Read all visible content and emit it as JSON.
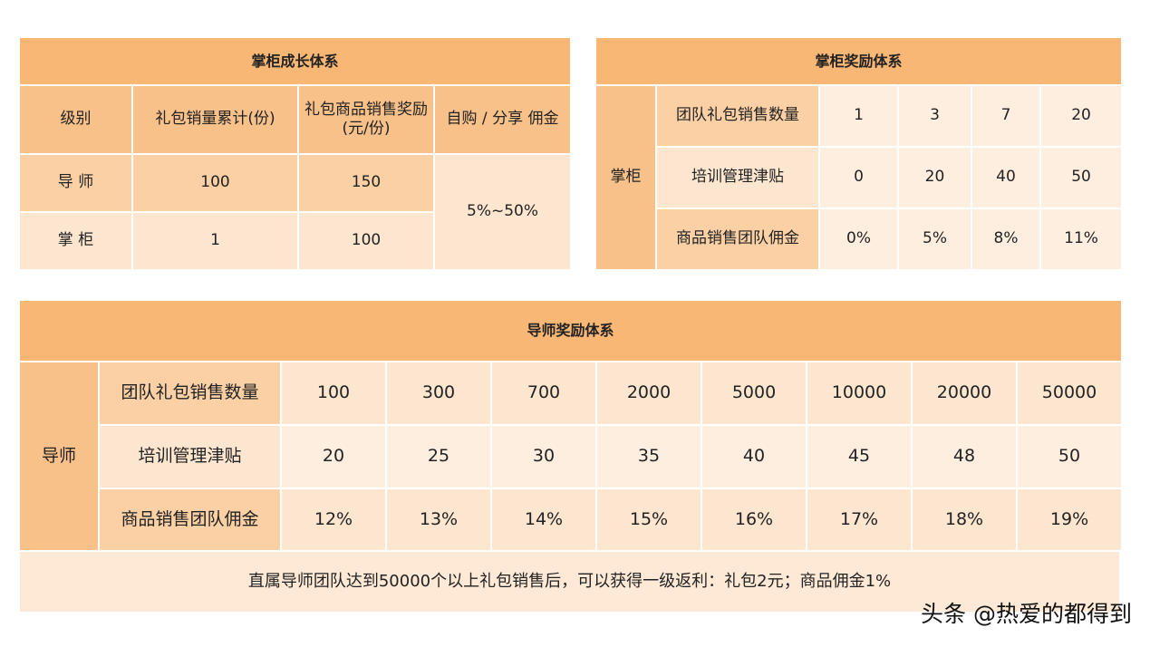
{
  "growth": {
    "title": "掌柜成长体系",
    "headers": [
      "级别",
      "礼包销量累计(份)",
      "礼包商品销售奖励(元/份)",
      "自购 / 分享 佣金"
    ],
    "rows": [
      {
        "level": "导 师",
        "count": "100",
        "reward": "150"
      },
      {
        "level": "掌 柜",
        "count": "1",
        "reward": "100"
      }
    ],
    "commission": "5%~50%"
  },
  "manager": {
    "title": "掌柜奖励体系",
    "side_label": "掌柜",
    "rows": [
      {
        "label": "团队礼包销售数量",
        "values": [
          "1",
          "3",
          "7",
          "20"
        ]
      },
      {
        "label": "培训管理津贴",
        "values": [
          "0",
          "20",
          "40",
          "50"
        ]
      },
      {
        "label": "商品销售团队佣金",
        "values": [
          "0%",
          "5%",
          "8%",
          "11%"
        ]
      }
    ]
  },
  "mentor": {
    "title": "导师奖励体系",
    "side_label": "导师",
    "rows": [
      {
        "label": "团队礼包销售数量",
        "values": [
          "100",
          "300",
          "700",
          "2000",
          "5000",
          "10000",
          "20000",
          "50000"
        ]
      },
      {
        "label": "培训管理津贴",
        "values": [
          "20",
          "25",
          "30",
          "35",
          "40",
          "45",
          "48",
          "50"
        ]
      },
      {
        "label": "商品销售团队佣金",
        "values": [
          "12%",
          "13%",
          "14%",
          "15%",
          "16%",
          "17%",
          "18%",
          "19%"
        ]
      }
    ],
    "note": "直属导师团队达到50000个以上礼包销售后，可以获得一级返利：礼包2元；商品佣金1%"
  },
  "watermark": "头条 @热爱的都得到"
}
